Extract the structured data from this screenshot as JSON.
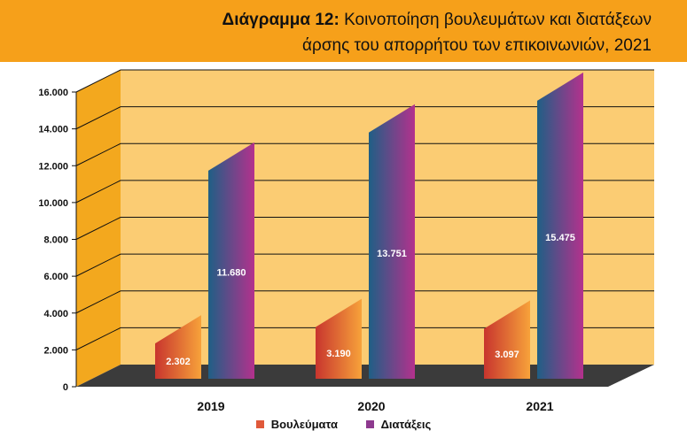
{
  "title": {
    "bold_part": "Διάγραμμα 12:",
    "line1_rest": " Κοινοποίηση βουλευμάτων και διατάξεων",
    "line2": "άρσης του απορρήτου των επικοινωνιών, 2021"
  },
  "colors": {
    "banner": "#f6a01a",
    "back_wall": "#fbcc73",
    "side_wall": "#f3a81e",
    "floor": "#3b3b3b",
    "series1_dark": "#c8352e",
    "series1_light": "#f7a23a",
    "series2_dark": "#1f5f85",
    "series2_light": "#b4318d"
  },
  "legend": {
    "series1": "Βουλεύματα",
    "series2": "Διατάξεις"
  },
  "chart_data": {
    "type": "bar",
    "categories": [
      "2019",
      "2020",
      "2021"
    ],
    "series": [
      {
        "name": "Βουλεύματα",
        "values": [
          2302,
          3190,
          3097
        ],
        "labels": [
          "2.302",
          "3.190",
          "3.097"
        ]
      },
      {
        "name": "Διατάξεις",
        "values": [
          11680,
          13751,
          15475
        ],
        "labels": [
          "11.680",
          "13.751",
          "15.475"
        ]
      }
    ],
    "ylim": [
      0,
      16000
    ],
    "yticks": [
      {
        "value": 0,
        "label": "0"
      },
      {
        "value": 2000,
        "label": "2.000"
      },
      {
        "value": 4000,
        "label": "4.000"
      },
      {
        "value": 6000,
        "label": "6.000"
      },
      {
        "value": 8000,
        "label": "8.000"
      },
      {
        "value": 10000,
        "label": "10.000"
      },
      {
        "value": 12000,
        "label": "12.000"
      },
      {
        "value": 14000,
        "label": "14.000"
      },
      {
        "value": 16000,
        "label": "16.000"
      }
    ],
    "grid": true,
    "legend_position": "bottom",
    "style": "3d"
  }
}
